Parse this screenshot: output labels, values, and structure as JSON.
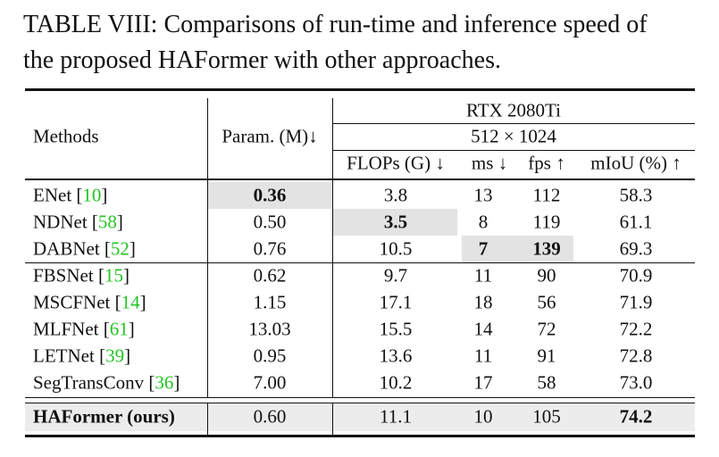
{
  "caption": {
    "label": "TABLE VIII:",
    "text": "Comparisons of run-time and inference speed of the proposed HAFormer with other approaches."
  },
  "table": {
    "header": {
      "methods": "Methods",
      "param": "Param. (M)↓",
      "device": "RTX 2080Ti",
      "resolution": "512 × 1024",
      "flops": "FLOPs (G) ↓",
      "ms": "ms ↓",
      "fps": "fps ↑",
      "miou": "mIoU (%) ↑"
    },
    "rows": [
      {
        "method": "ENet",
        "ref": "[10]",
        "param": "0.36",
        "flops": "3.8",
        "ms": "13",
        "fps": "112",
        "miou": "58.3"
      },
      {
        "method": "NDNet",
        "ref": "[58]",
        "param": "0.50",
        "flops": "3.5",
        "ms": "8",
        "fps": "119",
        "miou": "61.1"
      },
      {
        "method": "DABNet",
        "ref": "[52]",
        "param": "0.76",
        "flops": "10.5",
        "ms": "7",
        "fps": "139",
        "miou": "69.3"
      },
      {
        "method": "FBSNet",
        "ref": "[15]",
        "param": "0.62",
        "flops": "9.7",
        "ms": "11",
        "fps": "90",
        "miou": "70.9"
      },
      {
        "method": "MSCFNet",
        "ref": "[14]",
        "param": "1.15",
        "flops": "17.1",
        "ms": "18",
        "fps": "56",
        "miou": "71.9"
      },
      {
        "method": "MLFNet",
        "ref": "[61]",
        "param": "13.03",
        "flops": "15.5",
        "ms": "14",
        "fps": "72",
        "miou": "72.2"
      },
      {
        "method": "LETNet",
        "ref": "[39]",
        "param": "0.95",
        "flops": "13.6",
        "ms": "11",
        "fps": "91",
        "miou": "72.8"
      },
      {
        "method": "SegTransConv",
        "ref": "[36]",
        "param": "7.00",
        "flops": "10.2",
        "ms": "17",
        "fps": "58",
        "miou": "73.0"
      },
      {
        "method": "HAFormer (ours)",
        "param": "0.60",
        "flops": "11.1",
        "ms": "10",
        "fps": "105",
        "miou": "74.2"
      }
    ]
  }
}
